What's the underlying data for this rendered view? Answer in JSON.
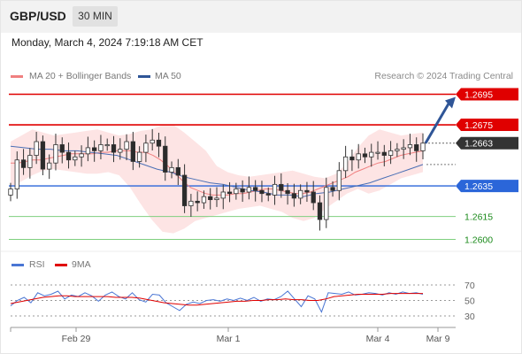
{
  "header": {
    "pair": "GBP/USD",
    "timeframe": "30 MIN"
  },
  "datetime": "Monday, March 4, 2024 7:19:18 AM CET",
  "legend": {
    "ma20": {
      "label": "MA 20 + Bollinger Bands",
      "color": "#f08080"
    },
    "ma50": {
      "label": "MA 50",
      "color": "#2f5597"
    },
    "rsi": {
      "label": "RSI",
      "color": "#4a76d4"
    },
    "ma9": {
      "label": "9MA",
      "color": "#e00000"
    }
  },
  "credit": "Research © 2024 Trading Central",
  "chart_data": [
    {
      "type": "candlestick",
      "x_tick_labels": [
        "Feb 29",
        "Mar 1",
        "Mar 4",
        "Mar 9"
      ],
      "levels": [
        {
          "value": 1.2695,
          "label": "1.2695",
          "style": "resistance",
          "color": "#e00000"
        },
        {
          "value": 1.2675,
          "label": "1.2675",
          "style": "resistance",
          "color": "#e00000"
        },
        {
          "value": 1.2663,
          "label": "1.2663",
          "style": "last-price",
          "color": "#333333"
        },
        {
          "value": 1.2635,
          "label": "1.2635",
          "style": "pivot",
          "color": "#2b66d9"
        },
        {
          "value": 1.2615,
          "label": "1.2615",
          "style": "support",
          "color": "#1a8a1a"
        },
        {
          "value": 1.26,
          "label": "1.2600",
          "style": "support",
          "color": "#1a8a1a"
        }
      ],
      "close": [
        1.2633,
        1.2652,
        1.2647,
        1.2655,
        1.2664,
        1.2646,
        1.265,
        1.2662,
        1.2657,
        1.2652,
        1.2654,
        1.2656,
        1.266,
        1.2658,
        1.2662,
        1.2662,
        1.2657,
        1.2659,
        1.2664,
        1.2651,
        1.2657,
        1.2663,
        1.2665,
        1.2661,
        1.2644,
        1.2647,
        1.2642,
        1.2622,
        1.2625,
        1.2624,
        1.2628,
        1.2626,
        1.2627,
        1.2631,
        1.263,
        1.2633,
        1.2631,
        1.2634,
        1.2632,
        1.263,
        1.2629,
        1.2636,
        1.2632,
        1.263,
        1.2627,
        1.2632,
        1.2631,
        1.2624,
        1.2613,
        1.2634,
        1.2632,
        1.2645,
        1.2654,
        1.2652,
        1.2656,
        1.2654,
        1.2657,
        1.2657,
        1.2655,
        1.2658,
        1.2659,
        1.266,
        1.2662,
        1.2658,
        1.2663
      ],
      "ma20": [
        1.265,
        1.265,
        1.2651,
        1.2652,
        1.2652,
        1.2653,
        1.2654,
        1.2655,
        1.2656,
        1.2656,
        1.2656,
        1.2656,
        1.2657,
        1.2657,
        1.2658,
        1.2658,
        1.2658,
        1.2657,
        1.2657,
        1.2655,
        1.2652,
        1.2648,
        1.2643,
        1.2638,
        1.2634,
        1.2632,
        1.263,
        1.2629,
        1.2629,
        1.2629,
        1.263,
        1.263,
        1.2631,
        1.2632,
        1.2633,
        1.2633,
        1.2632,
        1.2631,
        1.263,
        1.263,
        1.2631,
        1.2633,
        1.2635,
        1.2637,
        1.2639,
        1.2641,
        1.2644,
        1.2646,
        1.2648,
        1.265,
        1.2651,
        1.2653,
        1.2655,
        1.2656,
        1.2657,
        1.2658
      ],
      "bb_upper": [
        1.2664,
        1.2668,
        1.2672,
        1.267,
        1.2668,
        1.2669,
        1.267,
        1.2671,
        1.2672,
        1.267,
        1.2668,
        1.2669,
        1.2671,
        1.2672,
        1.2675,
        1.2675,
        1.267,
        1.2664,
        1.2658,
        1.2648,
        1.2644,
        1.2642,
        1.2641,
        1.2642,
        1.2643,
        1.2644,
        1.2645,
        1.2643,
        1.2641,
        1.264,
        1.2643,
        1.265,
        1.266,
        1.2668,
        1.2672,
        1.267,
        1.2668,
        1.2669,
        1.267
      ],
      "bb_lower": [
        1.2634,
        1.2638,
        1.2642,
        1.2645,
        1.2646,
        1.2645,
        1.2644,
        1.2643,
        1.2643,
        1.2644,
        1.2642,
        1.2634,
        1.2623,
        1.2613,
        1.2605,
        1.2604,
        1.2607,
        1.2612,
        1.2614,
        1.2616,
        1.2618,
        1.262,
        1.2621,
        1.2622,
        1.262,
        1.2618,
        1.2614,
        1.2612,
        1.2614,
        1.262,
        1.2625,
        1.263,
        1.2633,
        1.263,
        1.2632,
        1.2636,
        1.264,
        1.2642,
        1.2644
      ],
      "ma50": [
        1.2661,
        1.266,
        1.2659,
        1.2659,
        1.2658,
        1.2658,
        1.2657,
        1.2656,
        1.2655,
        1.2652,
        1.2649,
        1.2646,
        1.2644,
        1.2641,
        1.2639,
        1.2637,
        1.2636,
        1.2634,
        1.2632,
        1.2631,
        1.2629,
        1.2629,
        1.2628,
        1.263,
        1.2631,
        1.2633,
        1.2635,
        1.2637,
        1.264,
        1.2643,
        1.2646,
        1.2649
      ]
    },
    {
      "type": "line",
      "name": "RSI",
      "y_tick_labels": [
        "70",
        "50",
        "30"
      ],
      "y_ticks": [
        70,
        50,
        30
      ],
      "rsi": [
        43,
        50,
        54,
        47,
        60,
        56,
        58,
        62,
        52,
        57,
        55,
        60,
        56,
        49,
        57,
        61,
        55,
        52,
        60,
        51,
        48,
        58,
        57,
        47,
        42,
        37,
        45,
        48,
        46,
        50,
        51,
        49,
        52,
        50,
        53,
        50,
        54,
        49,
        52,
        51,
        55,
        62,
        52,
        42,
        56,
        52,
        35,
        60,
        59,
        58,
        61,
        57,
        58,
        60,
        59,
        57,
        60,
        58,
        61,
        59,
        60,
        58
      ],
      "ma9": [
        46,
        48,
        50,
        52,
        54,
        55,
        56,
        56,
        55,
        55,
        55,
        55,
        55,
        54,
        54,
        54,
        53,
        51,
        49,
        47,
        46,
        45,
        44,
        44,
        45,
        46,
        47,
        48,
        49,
        49,
        50,
        50,
        51,
        51,
        52,
        51,
        51,
        50,
        50,
        52,
        55,
        56,
        57,
        58,
        58,
        58,
        58,
        59,
        59,
        59,
        59,
        59
      ]
    }
  ]
}
